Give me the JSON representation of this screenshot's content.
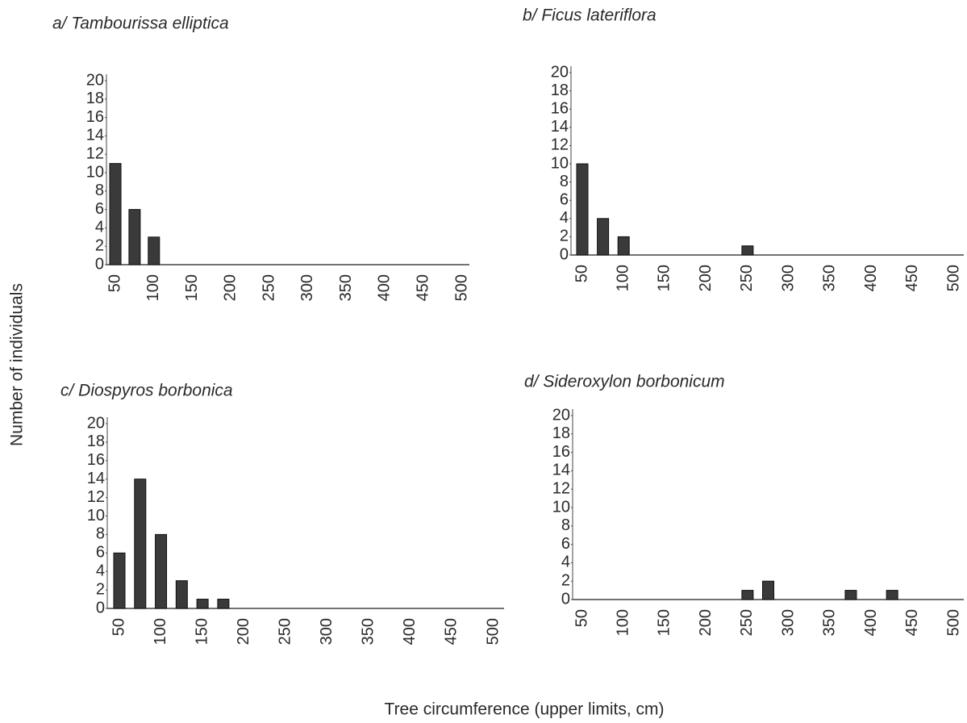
{
  "ylabel": "Number of individuals",
  "xlabel": "Tree circumference (upper limits, cm)",
  "chart_data": [
    {
      "type": "bar",
      "title": "a/ Tambourissa elliptica",
      "categories": [
        "50",
        null,
        "100",
        null,
        "150",
        null,
        "200",
        null,
        "250",
        null,
        "300",
        null,
        "350",
        null,
        "400",
        null,
        "450",
        null,
        "500"
      ],
      "values": [
        11,
        6,
        3,
        0,
        0,
        0,
        0,
        0,
        0,
        0,
        0,
        0,
        0,
        0,
        0,
        0,
        0,
        0,
        0
      ],
      "color": "#3a3a3a",
      "ylim": [
        0,
        20
      ],
      "yticks": [
        0,
        2,
        4,
        6,
        8,
        10,
        12,
        14,
        16,
        18,
        20
      ],
      "grid": false
    },
    {
      "type": "bar",
      "title": "b/ Ficus lateriflora",
      "categories": [
        "50",
        null,
        "100",
        null,
        "150",
        null,
        "200",
        null,
        "250",
        null,
        "300",
        null,
        "350",
        null,
        "400",
        null,
        "450",
        null,
        "500"
      ],
      "values": [
        10,
        4,
        2,
        0,
        0,
        0,
        0,
        0,
        1,
        0,
        0,
        0,
        0,
        0,
        0,
        0,
        0,
        0,
        0
      ],
      "color": "#3a3a3a",
      "ylim": [
        0,
        20
      ],
      "yticks": [
        0,
        2,
        4,
        6,
        8,
        10,
        12,
        14,
        16,
        18,
        20
      ],
      "grid": false
    },
    {
      "type": "bar",
      "title": "c/ Diospyros borbonica",
      "categories": [
        "50",
        null,
        "100",
        null,
        "150",
        null,
        "200",
        null,
        "250",
        null,
        "300",
        null,
        "350",
        null,
        "400",
        null,
        "450",
        null,
        "500"
      ],
      "values": [
        6,
        14,
        8,
        3,
        1,
        1,
        0,
        0,
        0,
        0,
        0,
        0,
        0,
        0,
        0,
        0,
        0,
        0,
        0
      ],
      "color": "#3a3a3a",
      "ylim": [
        0,
        20
      ],
      "yticks": [
        0,
        2,
        4,
        6,
        8,
        10,
        12,
        14,
        16,
        18,
        20
      ],
      "grid": false
    },
    {
      "type": "bar",
      "title": "d/ Sideroxylon borbonicum",
      "categories": [
        "50",
        null,
        "100",
        null,
        "150",
        null,
        "200",
        null,
        "250",
        null,
        "300",
        null,
        "350",
        null,
        "400",
        null,
        "450",
        null,
        "500"
      ],
      "values": [
        0,
        0,
        0,
        0,
        0,
        0,
        0,
        0,
        1,
        2,
        0,
        0,
        0,
        1,
        0,
        1,
        0,
        0,
        0
      ],
      "color": "#3a3a3a",
      "ylim": [
        0,
        20
      ],
      "yticks": [
        0,
        2,
        4,
        6,
        8,
        10,
        12,
        14,
        16,
        18,
        20
      ],
      "grid": false
    }
  ]
}
